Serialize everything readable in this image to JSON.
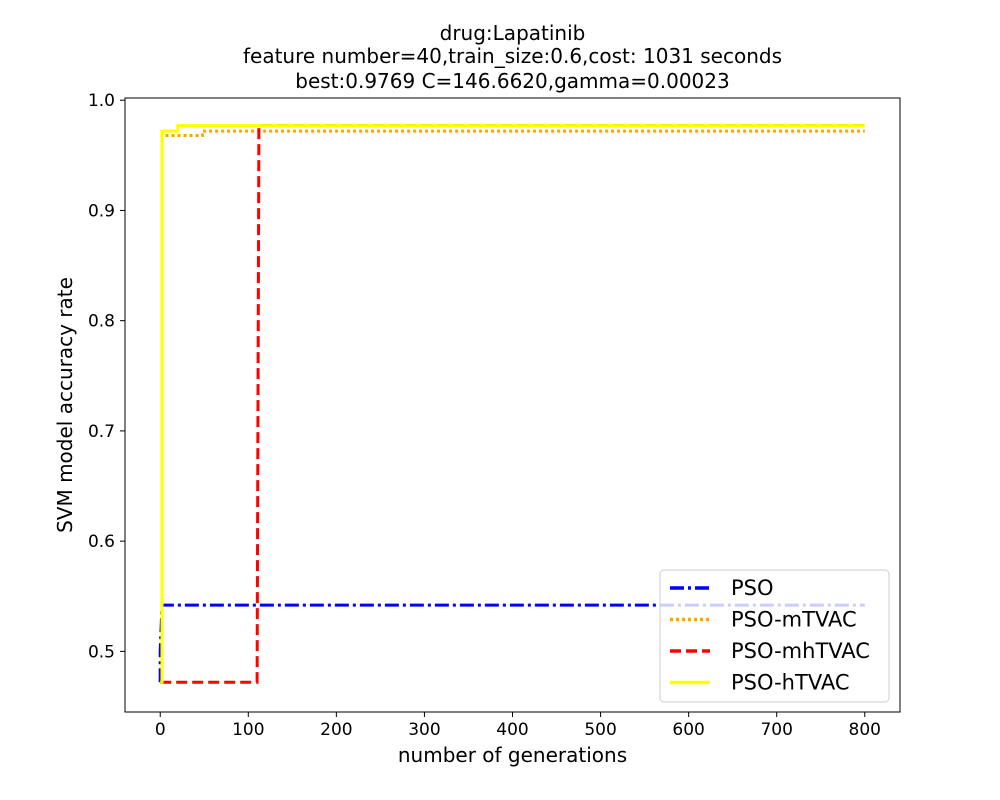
{
  "chart_data": {
    "type": "line",
    "title": [
      "drug:Lapatinib",
      "feature number=40,train_size:0.6,cost: 1031 seconds",
      "best:0.9769  C=146.6620,gamma=0.00023"
    ],
    "xlabel": "number of generations",
    "ylabel": "SVM model accuracy rate",
    "xlim": [
      -40,
      840
    ],
    "ylim": [
      0.445,
      1.002
    ],
    "xticks": [
      0,
      100,
      200,
      300,
      400,
      500,
      600,
      700,
      800
    ],
    "yticks": [
      0.5,
      0.6,
      0.7,
      0.8,
      0.9,
      1.0
    ],
    "ytick_labels": [
      "0.5",
      "0.6",
      "0.7",
      "0.8",
      "0.9",
      "1.0"
    ],
    "grid": false,
    "legend_position": "bottom-right",
    "series": [
      {
        "name": "PSO",
        "color": "#0000ff",
        "style": "dashdot",
        "x": [
          0,
          0,
          2,
          800
        ],
        "y": [
          0.472,
          0.5,
          0.542,
          0.542
        ]
      },
      {
        "name": "PSO-mTVAC",
        "color": "#ffa500",
        "style": "dotted",
        "x": [
          0,
          2,
          2,
          48,
          48,
          800
        ],
        "y": [
          0.472,
          0.472,
          0.968,
          0.968,
          0.972,
          0.972
        ]
      },
      {
        "name": "PSO-mhTVAC",
        "color": "#ff0000",
        "style": "dashed",
        "x": [
          0,
          110,
          112,
          800
        ],
        "y": [
          0.472,
          0.472,
          0.977,
          0.977
        ]
      },
      {
        "name": "PSO-hTVAC",
        "color": "#ffff00",
        "style": "solid",
        "x": [
          0,
          2,
          2,
          20,
          20,
          800
        ],
        "y": [
          0.472,
          0.472,
          0.972,
          0.972,
          0.977,
          0.977
        ]
      }
    ]
  }
}
